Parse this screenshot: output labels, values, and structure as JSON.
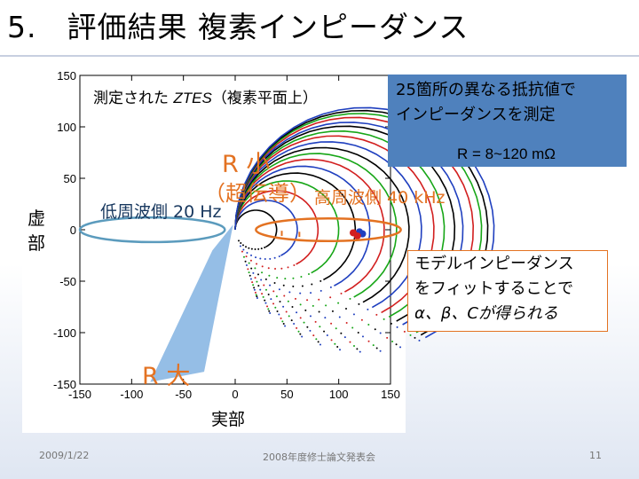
{
  "slide": {
    "title": "5.　評価結果  複素インピーダンス",
    "date": "2009/1/22",
    "event": "2008年度修士論文発表会",
    "page_number": "11"
  },
  "annotations": {
    "ztes_caption_prefix": "測定された ",
    "ztes_symbol": "ZTES",
    "ztes_caption_suffix": "（複素平面上）",
    "blue_note": [
      "25箇所の異なる抵抗値で",
      "インピーダンスを測定"
    ],
    "r_range": "R = 8~120 mΩ",
    "r_small": "R 小",
    "superconducting": "（超伝導）",
    "low_freq": "低周波側 20 Hz",
    "high_freq": "高周波側 40 kHz",
    "r_large": "R 大",
    "model_note": [
      "モデルインピーダンス",
      "をフィットすることで",
      "α、β、Cが得られる"
    ]
  },
  "colors": {
    "title_rule": "#c7cfe0",
    "blue_box": "#4f81bd",
    "accent_orange": "#e37222",
    "low_freq_ellipse": "#5b9bbd",
    "wedge": "#7aaee0",
    "series": [
      "#000000",
      "#1f3fbf",
      "#d21f1f",
      "#17a617"
    ]
  },
  "chart_data": {
    "type": "scatter",
    "title": "",
    "xlabel": "実部",
    "ylabel": "虚部",
    "xlim": [
      -150,
      150
    ],
    "ylim": [
      -150,
      150
    ],
    "x_ticks": [
      -150,
      -100,
      -50,
      0,
      50,
      100,
      150
    ],
    "y_ticks": [
      -150,
      -100,
      -50,
      0,
      50,
      100,
      150
    ],
    "grid": false,
    "semicircles": [
      {
        "center": 20,
        "radius": 20,
        "color_index": 0
      },
      {
        "center": 30,
        "radius": 30,
        "color_index": 1
      },
      {
        "center": 40,
        "radius": 40,
        "color_index": 2
      },
      {
        "center": 50,
        "radius": 50,
        "color_index": 3
      },
      {
        "center": 58,
        "radius": 58,
        "color_index": 0
      },
      {
        "center": 65,
        "radius": 65,
        "color_index": 1
      },
      {
        "center": 72,
        "radius": 72,
        "color_index": 2
      },
      {
        "center": 78,
        "radius": 78,
        "color_index": 3
      },
      {
        "center": 84,
        "radius": 84,
        "color_index": 0
      },
      {
        "center": 90,
        "radius": 90,
        "color_index": 1
      },
      {
        "center": 96,
        "radius": 96,
        "color_index": 2
      },
      {
        "center": 101,
        "radius": 101,
        "color_index": 3
      },
      {
        "center": 106,
        "radius": 106,
        "color_index": 0
      },
      {
        "center": 110,
        "radius": 110,
        "color_index": 1
      },
      {
        "center": 115,
        "radius": 115,
        "color_index": 2
      },
      {
        "center": 119,
        "radius": 119,
        "color_index": 3
      },
      {
        "center": 122,
        "radius": 122,
        "color_index": 0
      },
      {
        "center": 125,
        "radius": 125,
        "color_index": 1
      }
    ],
    "arc_start_angle_deg": -62,
    "arc_end_angle_deg": 180,
    "points_per_arc": 34,
    "high_frequency_points": [
      {
        "x": 123,
        "y": -4,
        "color_index": 1
      },
      {
        "x": 120,
        "y": -2,
        "color_index": 1
      },
      {
        "x": 118,
        "y": -6,
        "color_index": 2
      },
      {
        "x": 114,
        "y": -3,
        "color_index": 2
      }
    ],
    "low_freq_ellipse": {
      "cx": -80,
      "cy": 0,
      "rx": 70,
      "ry": 12
    },
    "high_freq_ellipse": {
      "cx": 90,
      "cy": 0,
      "rx": 70,
      "ry": 11
    },
    "wedge_polygon": [
      [
        -2,
        5
      ],
      [
        -22,
        -20
      ],
      [
        -82,
        -148
      ],
      [
        -30,
        -138
      ]
    ],
    "vertical_marks": [
      {
        "x": 45,
        "y1": -1,
        "y2": -6
      },
      {
        "x": 62,
        "y1": -2,
        "y2": -7
      }
    ]
  }
}
